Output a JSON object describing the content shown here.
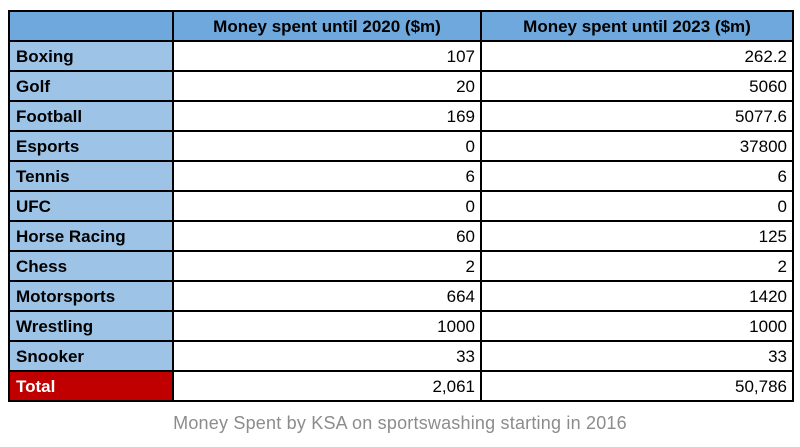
{
  "header": {
    "corner": "",
    "col_2020": "Money spent until 2020  ($m)",
    "col_2023": "Money spent until 2023 ($m)"
  },
  "rows": [
    {
      "label": "Boxing",
      "v2020": "107",
      "v2023": "262.2"
    },
    {
      "label": "Golf",
      "v2020": "20",
      "v2023": "5060"
    },
    {
      "label": "Football",
      "v2020": "169",
      "v2023": "5077.6"
    },
    {
      "label": "Esports",
      "v2020": "0",
      "v2023": "37800"
    },
    {
      "label": "Tennis",
      "v2020": "6",
      "v2023": "6"
    },
    {
      "label": "UFC",
      "v2020": "0",
      "v2023": "0"
    },
    {
      "label": "Horse Racing",
      "v2020": "60",
      "v2023": "125"
    },
    {
      "label": "Chess",
      "v2020": "2",
      "v2023": "2"
    },
    {
      "label": "Motorsports",
      "v2020": "664",
      "v2023": "1420"
    },
    {
      "label": "Wrestling",
      "v2020": "1000",
      "v2023": "1000"
    },
    {
      "label": "Snooker",
      "v2020": "33",
      "v2023": "33"
    },
    {
      "label": "Total",
      "v2020": "2,061",
      "v2023": "50,786"
    }
  ],
  "caption": "Money Spent by KSA on sportswashing starting in 2016",
  "colors": {
    "header_blue": "#6FA8DC",
    "label_blue": "#9DC3E6",
    "total_red": "#C00000",
    "border_black": "#000000",
    "caption_gray": "#8C8C8C"
  },
  "chart_data": {
    "type": "table",
    "title": "Money Spent by KSA on sportswashing starting in 2016",
    "categories": [
      "Boxing",
      "Golf",
      "Football",
      "Esports",
      "Tennis",
      "UFC",
      "Horse Racing",
      "Chess",
      "Motorsports",
      "Wrestling",
      "Snooker"
    ],
    "series": [
      {
        "name": "Money spent until 2020 ($m)",
        "values": [
          107,
          20,
          169,
          0,
          6,
          0,
          60,
          2,
          664,
          1000,
          33
        ],
        "total": 2061
      },
      {
        "name": "Money spent until 2023 ($m)",
        "values": [
          262.2,
          5060,
          5077.6,
          37800,
          6,
          0,
          125,
          2,
          1420,
          1000,
          33
        ],
        "total": 50786
      }
    ],
    "legend_position": "none",
    "grid": "table-borders"
  }
}
